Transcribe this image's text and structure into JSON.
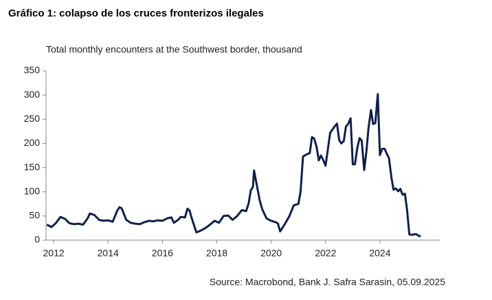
{
  "chart_data": {
    "type": "line",
    "title": "Gráfico 1: colapso de los cruces fronterizos ilegales",
    "subtitle": "Total monthly encounters at the Southwest border, thousand",
    "source": "Source: Macrobond, Bank J. Safra Sarasin, 05.09.2025",
    "xlim": [
      2011.72,
      2026.2
    ],
    "xticks": [
      2012,
      2014,
      2016,
      2018,
      2020,
      2022,
      2024
    ],
    "ylim": [
      0,
      350
    ],
    "yticks": [
      0,
      50,
      100,
      150,
      200,
      250,
      300,
      350
    ],
    "x": [
      2011.75,
      2011.92,
      2012.08,
      2012.25,
      2012.42,
      2012.58,
      2012.75,
      2012.92,
      2013.08,
      2013.25,
      2013.33,
      2013.5,
      2013.67,
      2013.83,
      2014.0,
      2014.17,
      2014.33,
      2014.42,
      2014.5,
      2014.67,
      2014.83,
      2015.0,
      2015.17,
      2015.33,
      2015.5,
      2015.67,
      2015.83,
      2016.0,
      2016.17,
      2016.33,
      2016.42,
      2016.58,
      2016.67,
      2016.83,
      2016.92,
      2017.0,
      2017.08,
      2017.25,
      2017.42,
      2017.58,
      2017.75,
      2017.92,
      2018.08,
      2018.25,
      2018.42,
      2018.58,
      2018.75,
      2018.92,
      2019.08,
      2019.17,
      2019.25,
      2019.33,
      2019.37,
      2019.5,
      2019.58,
      2019.67,
      2019.83,
      2020.0,
      2020.17,
      2020.25,
      2020.33,
      2020.5,
      2020.67,
      2020.83,
      2021.0,
      2021.08,
      2021.17,
      2021.33,
      2021.42,
      2021.5,
      2021.58,
      2021.67,
      2021.75,
      2021.83,
      2021.92,
      2022.0,
      2022.17,
      2022.33,
      2022.42,
      2022.5,
      2022.58,
      2022.67,
      2022.75,
      2022.83,
      2022.92,
      2023.0,
      2023.08,
      2023.17,
      2023.25,
      2023.33,
      2023.42,
      2023.5,
      2023.58,
      2023.67,
      2023.75,
      2023.83,
      2023.92,
      2024.0,
      2024.08,
      2024.17,
      2024.25,
      2024.33,
      2024.42,
      2024.5,
      2024.58,
      2024.67,
      2024.75,
      2024.83,
      2024.92,
      2025.0,
      2025.08,
      2025.17,
      2025.25,
      2025.33,
      2025.42,
      2025.5
    ],
    "series": [
      {
        "color": "#0f1f4b",
        "values": [
          32,
          27,
          35,
          48,
          44,
          35,
          33,
          34,
          32,
          45,
          55,
          52,
          42,
          40,
          41,
          38,
          60,
          68,
          66,
          42,
          36,
          34,
          33,
          37,
          40,
          39,
          41,
          40,
          45,
          47,
          36,
          42,
          48,
          47,
          65,
          61,
          45,
          16,
          20,
          25,
          32,
          40,
          36,
          50,
          51,
          42,
          50,
          62,
          60,
          76,
          103,
          110,
          144,
          105,
          82,
          64,
          45,
          40,
          37,
          34,
          18,
          33,
          50,
          72,
          75,
          100,
          173,
          178,
          180,
          213,
          210,
          193,
          165,
          175,
          165,
          154,
          222,
          235,
          241,
          207,
          200,
          205,
          235,
          240,
          252,
          157,
          157,
          192,
          211,
          206,
          145,
          183,
          232,
          269,
          240,
          242,
          302,
          176,
          189,
          189,
          179,
          170,
          130,
          104,
          107,
          101,
          106,
          94,
          96,
          61,
          12,
          11,
          12,
          12.5,
          9,
          8
        ]
      }
    ]
  }
}
